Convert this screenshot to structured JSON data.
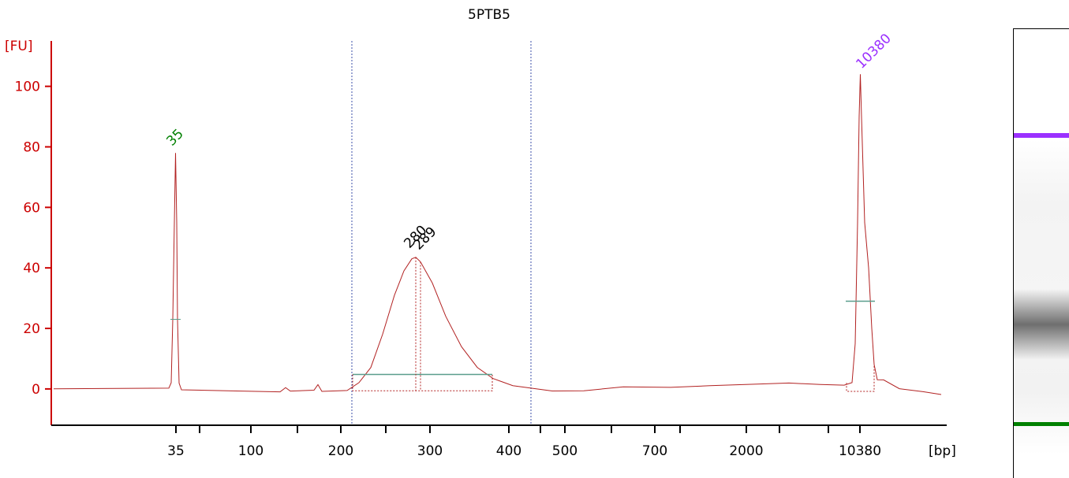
{
  "chart_data": {
    "type": "line",
    "title": "5PTB5",
    "ylabel": "[FU]",
    "xlabel": "[bp]",
    "ylim": [
      -12,
      115
    ],
    "y_ticks": [
      0,
      20,
      40,
      60,
      80,
      100
    ],
    "x_tick_labels": [
      "35",
      "100",
      "200",
      "300",
      "400",
      "500",
      "700",
      "2000",
      "10380"
    ],
    "grid": false,
    "series": [
      {
        "points": [
          [
            "35",
            0.3
          ],
          [
            "35",
            23
          ],
          [
            "35",
            78
          ],
          [
            "35",
            23
          ],
          [
            "35",
            0.3
          ],
          [
            "100",
            -0.5
          ],
          [
            "200",
            -0.6
          ],
          [
            "200",
            4
          ],
          [
            "280",
            43
          ],
          [
            "289",
            42
          ],
          [
            "300",
            36
          ],
          [
            "400",
            3
          ],
          [
            "500",
            -0.6
          ],
          [
            "700",
            0.8
          ],
          [
            "2000",
            1.5
          ],
          [
            "10380",
            1.2
          ],
          [
            "10380",
            29
          ],
          [
            "10380",
            104
          ],
          [
            "10380",
            29
          ],
          [
            "10380",
            2
          ],
          [
            "10380",
            -1.8
          ]
        ]
      }
    ],
    "peaks": [
      {
        "label": "35",
        "value": 78,
        "color": "#008000"
      },
      {
        "label": "280",
        "value": 43,
        "color": "#000000"
      },
      {
        "label": "289",
        "value": 42,
        "color": "#000000"
      },
      {
        "label": "10380",
        "value": 104,
        "color": "#9b30ff"
      }
    ],
    "region_markers": [
      "200",
      "400"
    ],
    "colors": {
      "axis": "#cc0000",
      "trace": "#b22222",
      "region_line": "#3b4fa8",
      "baseline": "#5a9e8c",
      "upper_marker": "#9b30ff",
      "lower_marker": "#008000"
    }
  },
  "gel": {
    "upper_marker_color": "#9b30ff",
    "lower_marker_color": "#008000",
    "sample_band_intensity": 0.55
  }
}
